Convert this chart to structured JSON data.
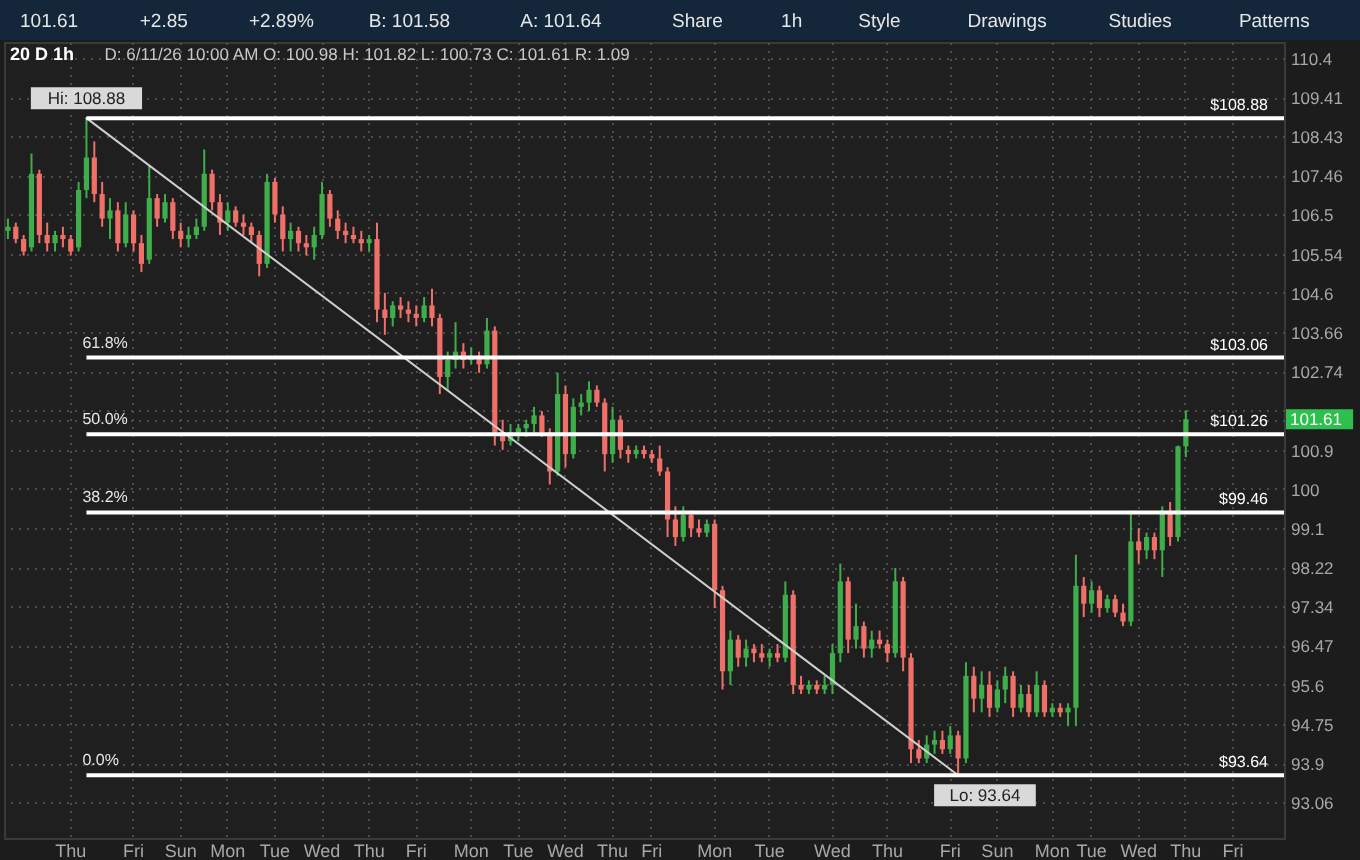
{
  "chart_data": {
    "type": "candlestick",
    "title": "20 D 1h",
    "subtitle": "D: 6/11/26 10:00 AM O: 100.98 H: 101.82 L: 100.73 C: 101.61 R: 1.09",
    "annotations": [
      "101.61",
      "+2.85",
      "+2.89%",
      "B: 101.58",
      "A: 101.64",
      "Share",
      "1h",
      "Style",
      "Drawings",
      "Studies",
      "Patterns",
      {
        "text": "61.8%",
        "y": 103.06
      },
      {
        "text": "50.0%",
        "y": 101.26
      },
      {
        "text": "38.2%",
        "y": 99.46
      },
      {
        "text": "0.0%",
        "y": 93.64
      }
    ],
    "categories": [
      null,
      null,
      null,
      null,
      null,
      null,
      null,
      null,
      "Thu",
      null,
      null,
      null,
      null,
      null,
      null,
      null,
      "Fri",
      null,
      null,
      null,
      null,
      null,
      "Sun",
      null,
      null,
      null,
      null,
      null,
      "Mon",
      null,
      null,
      null,
      null,
      null,
      "Tue",
      null,
      null,
      null,
      null,
      null,
      "Wed",
      null,
      null,
      null,
      null,
      null,
      "Thu",
      null,
      null,
      null,
      null,
      null,
      "Fri",
      null,
      null,
      null,
      null,
      null,
      null,
      "Mon",
      null,
      null,
      null,
      null,
      null,
      "Tue",
      null,
      null,
      null,
      null,
      null,
      "Wed",
      null,
      null,
      null,
      null,
      null,
      "Thu",
      null,
      null,
      null,
      null,
      "Fri",
      null,
      null,
      null,
      null,
      null,
      null,
      null,
      "Mon",
      null,
      null,
      null,
      null,
      null,
      null,
      "Tue",
      null,
      null,
      null,
      null,
      null,
      null,
      null,
      "Wed",
      null,
      null,
      null,
      null,
      null,
      null,
      "Thu",
      null,
      null,
      null,
      null,
      null,
      null,
      null,
      "Fri",
      null,
      null,
      null,
      null,
      null,
      "Sun",
      null,
      null,
      null,
      null,
      null,
      null,
      "Mon",
      null,
      null,
      null,
      null,
      "Tue",
      null,
      null,
      null,
      null,
      null,
      "Wed",
      null,
      null,
      null,
      null,
      null,
      "Thu",
      null,
      null,
      null,
      null,
      null,
      "Fri",
      null,
      null,
      null,
      null,
      null,
      null
    ],
    "ohlc": [
      [
        106.1,
        106.4,
        105.9,
        106.2
      ],
      [
        106.2,
        106.3,
        105.8,
        105.9
      ],
      [
        105.9,
        106.0,
        105.5,
        105.6
      ],
      [
        105.7,
        108.0,
        105.6,
        107.5
      ],
      [
        107.5,
        107.6,
        105.8,
        106.0
      ],
      [
        106.0,
        106.3,
        105.6,
        105.8
      ],
      [
        105.8,
        106.1,
        105.6,
        106.0
      ],
      [
        106.0,
        106.2,
        105.7,
        105.9
      ],
      [
        105.9,
        106.0,
        105.5,
        105.6
      ],
      [
        105.7,
        107.3,
        105.6,
        107.1
      ],
      [
        107.1,
        108.88,
        106.9,
        107.9
      ],
      [
        107.9,
        108.3,
        106.8,
        107.0
      ],
      [
        107.0,
        107.3,
        106.2,
        106.4
      ],
      [
        106.4,
        106.9,
        105.9,
        106.6
      ],
      [
        106.6,
        106.8,
        105.6,
        105.8
      ],
      [
        105.8,
        106.8,
        105.7,
        106.5
      ],
      [
        106.5,
        106.6,
        105.6,
        105.8
      ],
      [
        105.8,
        106.0,
        105.1,
        105.3
      ],
      [
        105.4,
        107.7,
        105.3,
        106.9
      ],
      [
        106.9,
        107.0,
        106.2,
        106.4
      ],
      [
        106.4,
        107.0,
        106.3,
        106.8
      ],
      [
        106.8,
        106.9,
        105.9,
        106.1
      ],
      [
        106.1,
        106.3,
        105.7,
        105.9
      ],
      [
        105.9,
        106.2,
        105.7,
        106.0
      ],
      [
        106.0,
        106.4,
        105.9,
        106.2
      ],
      [
        106.2,
        108.1,
        106.1,
        107.5
      ],
      [
        107.5,
        107.6,
        106.6,
        106.8
      ],
      [
        106.8,
        107.0,
        106.0,
        106.3
      ],
      [
        106.3,
        106.8,
        106.1,
        106.6
      ],
      [
        106.6,
        106.7,
        106.2,
        106.3
      ],
      [
        106.3,
        106.5,
        106.0,
        106.2
      ],
      [
        106.2,
        106.3,
        105.8,
        106.0
      ],
      [
        106.0,
        106.1,
        105.0,
        105.3
      ],
      [
        105.3,
        107.5,
        105.2,
        107.3
      ],
      [
        107.3,
        107.4,
        106.3,
        106.5
      ],
      [
        106.5,
        106.7,
        105.6,
        105.9
      ],
      [
        105.9,
        106.3,
        105.6,
        106.1
      ],
      [
        106.1,
        106.2,
        105.6,
        105.8
      ],
      [
        105.8,
        106.0,
        105.5,
        105.7
      ],
      [
        105.7,
        106.2,
        105.4,
        106.0
      ],
      [
        106.0,
        107.3,
        105.9,
        107.0
      ],
      [
        107.0,
        107.1,
        106.2,
        106.4
      ],
      [
        106.4,
        106.6,
        105.9,
        106.1
      ],
      [
        106.1,
        106.3,
        105.8,
        106.0
      ],
      [
        106.0,
        106.2,
        105.8,
        105.9
      ],
      [
        105.9,
        106.1,
        105.6,
        105.8
      ],
      [
        105.8,
        106.0,
        105.6,
        105.9
      ],
      [
        105.9,
        106.3,
        103.9,
        104.2
      ],
      [
        104.2,
        104.6,
        103.6,
        104.0
      ],
      [
        104.0,
        104.4,
        103.8,
        104.3
      ],
      [
        104.3,
        104.5,
        104.0,
        104.2
      ],
      [
        104.2,
        104.4,
        103.9,
        104.1
      ],
      [
        104.1,
        104.3,
        103.8,
        104.0
      ],
      [
        104.0,
        104.5,
        103.9,
        104.3
      ],
      [
        104.3,
        104.7,
        103.8,
        104.0
      ],
      [
        104.0,
        104.1,
        102.2,
        102.6
      ],
      [
        102.6,
        103.2,
        102.3,
        103.0
      ],
      [
        103.0,
        103.9,
        102.8,
        103.2
      ],
      [
        103.2,
        103.4,
        102.8,
        103.0
      ],
      [
        103.0,
        103.3,
        102.9,
        103.1
      ],
      [
        103.1,
        103.2,
        102.7,
        102.9
      ],
      [
        102.9,
        104.0,
        102.8,
        103.7
      ],
      [
        103.7,
        103.8,
        101.0,
        101.3
      ],
      [
        101.3,
        101.6,
        100.9,
        101.1
      ],
      [
        101.1,
        101.5,
        101.0,
        101.3
      ],
      [
        101.3,
        101.5,
        101.1,
        101.4
      ],
      [
        101.4,
        101.6,
        101.2,
        101.5
      ],
      [
        101.5,
        101.9,
        101.3,
        101.7
      ],
      [
        101.7,
        101.8,
        101.2,
        101.3
      ],
      [
        101.3,
        101.4,
        100.1,
        100.4
      ],
      [
        100.4,
        102.7,
        100.3,
        102.2
      ],
      [
        102.2,
        102.4,
        100.5,
        100.8
      ],
      [
        100.8,
        102.1,
        100.7,
        101.9
      ],
      [
        101.9,
        102.2,
        101.7,
        102.0
      ],
      [
        102.0,
        102.5,
        101.8,
        102.3
      ],
      [
        102.3,
        102.4,
        101.9,
        102.0
      ],
      [
        102.0,
        102.1,
        100.4,
        100.8
      ],
      [
        100.8,
        101.9,
        100.6,
        101.6
      ],
      [
        101.6,
        101.7,
        100.7,
        100.9
      ],
      [
        100.9,
        101.0,
        100.6,
        100.8
      ],
      [
        100.8,
        101.0,
        100.7,
        100.9
      ],
      [
        100.9,
        101.0,
        100.7,
        100.8
      ],
      [
        100.8,
        100.9,
        100.6,
        100.7
      ],
      [
        100.7,
        101.0,
        100.3,
        100.4
      ],
      [
        100.4,
        100.5,
        98.9,
        99.3
      ],
      [
        99.3,
        99.6,
        98.7,
        98.9
      ],
      [
        98.9,
        99.6,
        98.8,
        99.4
      ],
      [
        99.4,
        99.5,
        98.9,
        99.1
      ],
      [
        99.1,
        99.3,
        98.9,
        99.0
      ],
      [
        99.0,
        99.3,
        98.9,
        99.2
      ],
      [
        99.2,
        99.3,
        97.3,
        97.7
      ],
      [
        97.7,
        97.8,
        95.5,
        95.9
      ],
      [
        95.9,
        96.8,
        95.6,
        96.6
      ],
      [
        96.6,
        96.7,
        96.0,
        96.2
      ],
      [
        96.2,
        96.6,
        96.0,
        96.4
      ],
      [
        96.4,
        96.5,
        96.1,
        96.3
      ],
      [
        96.3,
        96.5,
        96.1,
        96.2
      ],
      [
        96.2,
        96.4,
        96.0,
        96.3
      ],
      [
        96.3,
        96.5,
        96.1,
        96.2
      ],
      [
        96.2,
        97.9,
        96.1,
        97.6
      ],
      [
        97.6,
        97.7,
        95.4,
        95.6
      ],
      [
        95.6,
        95.8,
        95.4,
        95.5
      ],
      [
        95.5,
        95.7,
        95.4,
        95.6
      ],
      [
        95.6,
        95.7,
        95.4,
        95.5
      ],
      [
        95.5,
        95.8,
        95.4,
        95.6
      ],
      [
        95.6,
        96.5,
        95.4,
        96.3
      ],
      [
        96.3,
        98.3,
        96.1,
        97.9
      ],
      [
        97.9,
        98.0,
        96.3,
        96.6
      ],
      [
        96.6,
        97.4,
        96.4,
        96.9
      ],
      [
        96.9,
        97.0,
        96.2,
        96.4
      ],
      [
        96.4,
        96.8,
        96.2,
        96.6
      ],
      [
        96.6,
        96.8,
        96.4,
        96.5
      ],
      [
        96.5,
        96.6,
        96.1,
        96.3
      ],
      [
        96.3,
        98.2,
        96.2,
        97.9
      ],
      [
        97.9,
        98.0,
        95.9,
        96.2
      ],
      [
        96.2,
        96.3,
        93.9,
        94.2
      ],
      [
        94.2,
        94.4,
        93.9,
        94.0
      ],
      [
        94.0,
        94.5,
        93.9,
        94.3
      ],
      [
        94.3,
        94.6,
        94.1,
        94.4
      ],
      [
        94.4,
        94.6,
        94.1,
        94.2
      ],
      [
        94.2,
        94.7,
        94.1,
        94.5
      ],
      [
        94.5,
        94.6,
        93.64,
        94.0
      ],
      [
        94.0,
        96.1,
        93.9,
        95.8
      ],
      [
        95.8,
        96.0,
        95.0,
        95.3
      ],
      [
        95.3,
        95.9,
        95.0,
        95.6
      ],
      [
        95.6,
        95.9,
        94.9,
        95.1
      ],
      [
        95.1,
        95.7,
        95.0,
        95.5
      ],
      [
        95.5,
        96.0,
        95.2,
        95.8
      ],
      [
        95.8,
        95.9,
        94.9,
        95.1
      ],
      [
        95.1,
        95.6,
        95.0,
        95.4
      ],
      [
        95.4,
        95.6,
        94.9,
        95.0
      ],
      [
        95.0,
        95.9,
        94.9,
        95.6
      ],
      [
        95.6,
        95.7,
        94.9,
        95.0
      ],
      [
        95.0,
        95.2,
        94.9,
        95.1
      ],
      [
        95.1,
        95.2,
        94.9,
        95.0
      ],
      [
        95.0,
        95.2,
        94.7,
        95.1
      ],
      [
        95.1,
        98.5,
        94.7,
        97.8
      ],
      [
        97.8,
        98.0,
        97.1,
        97.4
      ],
      [
        97.4,
        97.9,
        97.2,
        97.7
      ],
      [
        97.7,
        97.8,
        97.1,
        97.3
      ],
      [
        97.3,
        97.6,
        97.2,
        97.5
      ],
      [
        97.5,
        97.6,
        97.1,
        97.2
      ],
      [
        97.2,
        97.4,
        96.9,
        97.0
      ],
      [
        97.0,
        99.5,
        96.9,
        98.8
      ],
      [
        98.8,
        99.1,
        98.3,
        98.6
      ],
      [
        98.6,
        99.0,
        98.4,
        98.9
      ],
      [
        98.9,
        99.0,
        98.4,
        98.6
      ],
      [
        98.6,
        99.6,
        98.0,
        99.5
      ],
      [
        99.5,
        99.7,
        98.7,
        98.9
      ],
      [
        98.9,
        101.0,
        98.8,
        100.98
      ],
      [
        100.98,
        101.82,
        100.73,
        101.61
      ],
      null,
      null,
      null,
      null,
      null,
      null,
      null,
      null,
      null,
      null,
      null,
      null
    ],
    "colors": [
      "#3fae4a",
      "#ef7068",
      "#ef7068",
      "#3fae4a",
      "#ef7068",
      "#ef7068",
      "#3fae4a",
      "#ef7068",
      "#ef7068",
      "#3fae4a",
      "#3fae4a",
      "#ef7068",
      "#ef7068",
      "#3fae4a",
      "#ef7068",
      "#3fae4a",
      "#ef7068",
      "#ef7068",
      "#3fae4a",
      "#ef7068",
      "#3fae4a",
      "#ef7068",
      "#ef7068",
      "#3fae4a",
      "#3fae4a",
      "#3fae4a",
      "#ef7068",
      "#ef7068",
      "#3fae4a",
      "#ef7068",
      "#ef7068",
      "#ef7068",
      "#ef7068",
      "#3fae4a",
      "#ef7068",
      "#ef7068",
      "#3fae4a",
      "#ef7068",
      "#ef7068",
      "#3fae4a",
      "#3fae4a",
      "#ef7068",
      "#ef7068",
      "#ef7068",
      "#ef7068",
      "#ef7068",
      "#3fae4a",
      "#ef7068",
      "#ef7068",
      "#3fae4a",
      "#ef7068",
      "#ef7068",
      "#ef7068",
      "#3fae4a",
      "#ef7068",
      "#ef7068",
      "#3fae4a",
      "#3fae4a",
      "#ef7068",
      "#3fae4a",
      "#ef7068",
      "#3fae4a",
      "#ef7068",
      "#ef7068",
      "#3fae4a",
      "#3fae4a",
      "#3fae4a",
      "#3fae4a",
      "#ef7068",
      "#ef7068",
      "#3fae4a",
      "#ef7068",
      "#3fae4a",
      "#3fae4a",
      "#3fae4a",
      "#ef7068",
      "#ef7068",
      "#3fae4a",
      "#ef7068",
      "#ef7068",
      "#3fae4a",
      "#ef7068",
      "#ef7068",
      "#ef7068",
      "#ef7068",
      "#ef7068",
      "#3fae4a",
      "#ef7068",
      "#ef7068",
      "#3fae4a",
      "#ef7068",
      "#ef7068",
      "#3fae4a",
      "#ef7068",
      "#3fae4a",
      "#ef7068",
      "#ef7068",
      "#3fae4a",
      "#ef7068",
      "#3fae4a",
      "#ef7068",
      "#ef7068",
      "#3fae4a",
      "#ef7068",
      "#3fae4a",
      "#3fae4a",
      "#3fae4a",
      "#ef7068",
      "#3fae4a",
      "#ef7068",
      "#3fae4a",
      "#ef7068",
      "#ef7068",
      "#3fae4a",
      "#ef7068",
      "#ef7068",
      "#ef7068",
      "#3fae4a",
      "#3fae4a",
      "#ef7068",
      "#3fae4a",
      "#ef7068",
      "#3fae4a",
      "#ef7068",
      "#3fae4a",
      "#ef7068",
      "#3fae4a",
      "#3fae4a",
      "#ef7068",
      "#3fae4a",
      "#ef7068",
      "#3fae4a",
      "#ef7068",
      "#3fae4a",
      "#ef7068",
      "#3fae4a",
      "#3fae4a",
      "#ef7068",
      "#3fae4a",
      "#ef7068",
      "#3fae4a",
      "#ef7068",
      "#ef7068",
      "#3fae4a",
      "#ef7068",
      "#3fae4a",
      "#ef7068",
      "#3fae4a",
      "#ef7068",
      "#3fae4a",
      "#3fae4a",
      null,
      null,
      null,
      null,
      null,
      null,
      null,
      null,
      null,
      null,
      null,
      null
    ],
    "series": [
      {
        "type": "line",
        "color": "#cfcfcf",
        "values": [
          null,
          null,
          null,
          null,
          null,
          null,
          null,
          null,
          null,
          null,
          108.88,
          null,
          null,
          null,
          null,
          null,
          null,
          null,
          null,
          null,
          null,
          null,
          null,
          null,
          null,
          null,
          null,
          null,
          null,
          null,
          null,
          null,
          null,
          null,
          null,
          null,
          null,
          null,
          null,
          null,
          null,
          null,
          null,
          null,
          null,
          null,
          null,
          null,
          null,
          null,
          null,
          null,
          null,
          null,
          null,
          null,
          null,
          null,
          null,
          null,
          null,
          null,
          null,
          null,
          null,
          null,
          null,
          null,
          null,
          null,
          null,
          null,
          null,
          null,
          null,
          null,
          null,
          null,
          null,
          null,
          null,
          null,
          null,
          null,
          null,
          null,
          null,
          null,
          null,
          null,
          null,
          null,
          null,
          null,
          null,
          null,
          null,
          null,
          null,
          null,
          null,
          null,
          null,
          null,
          null,
          null,
          null,
          null,
          null,
          null,
          null,
          null,
          null,
          null,
          null,
          null,
          null,
          null,
          null,
          null,
          null,
          93.64,
          null,
          null,
          null,
          null,
          null,
          null,
          null,
          null,
          null,
          null,
          null,
          null,
          null,
          null,
          null,
          null,
          null,
          null,
          null,
          null,
          null,
          null,
          null,
          null,
          null,
          null,
          null,
          null,
          null,
          null,
          null,
          null,
          null,
          null,
          null,
          null,
          null,
          null,
          null,
          null,
          null
        ],
        "value_labels": [
          null,
          null,
          null,
          null,
          null,
          null,
          null,
          null,
          null,
          null,
          "Hi: 108.88",
          null,
          null,
          null,
          null,
          null,
          null,
          null,
          null,
          null,
          null,
          null,
          null,
          null,
          null,
          null,
          null,
          null,
          null,
          null,
          null,
          null,
          null,
          null,
          null,
          null,
          null,
          null,
          null,
          null,
          null,
          null,
          null,
          null,
          null,
          null,
          null,
          null,
          null,
          null,
          null,
          null,
          null,
          null,
          null,
          null,
          null,
          null,
          null,
          null,
          null,
          null,
          null,
          null,
          null,
          null,
          null,
          null,
          null,
          null,
          null,
          null,
          null,
          null,
          null,
          null,
          null,
          null,
          null,
          null,
          null,
          null,
          null,
          null,
          null,
          null,
          null,
          null,
          null,
          null,
          null,
          null,
          null,
          null,
          null,
          null,
          null,
          null,
          null,
          null,
          null,
          null,
          null,
          null,
          null,
          null,
          null,
          null,
          null,
          null,
          null,
          null,
          null,
          null,
          null,
          null,
          null,
          null,
          null,
          null,
          null,
          "Lo: 93.64",
          null,
          null,
          null,
          null,
          null,
          null,
          null,
          null,
          null,
          null,
          null,
          null,
          null,
          null,
          null,
          null,
          null,
          null,
          null,
          null,
          null,
          null,
          null,
          null,
          null,
          null,
          null,
          null,
          null,
          null,
          null,
          null,
          null,
          null,
          null,
          null,
          null,
          null,
          null,
          null,
          null
        ]
      }
    ],
    "ref_lines": [
      {
        "axis": "y",
        "value": 108.88,
        "label": "$108.88",
        "color": "#ffffff"
      },
      {
        "axis": "y",
        "value": 103.06,
        "label": "$103.06",
        "color": "#ffffff"
      },
      {
        "axis": "y",
        "value": 101.26,
        "label": "$101.26",
        "color": "#ffffff"
      },
      {
        "axis": "y",
        "value": 99.46,
        "label": "$99.46",
        "color": "#ffffff"
      },
      {
        "axis": "y",
        "value": 93.64,
        "label": "$93.64",
        "color": "#ffffff"
      }
    ],
    "ylim": [
      92.3,
      110.8
    ],
    "yticks": [
      110.4,
      109.41,
      108.43,
      107.46,
      106.5,
      105.54,
      104.6,
      103.66,
      102.74,
      {
        "value": 101.82,
        "label": null
      },
      101.61,
      100.9,
      100,
      99.1,
      98.22,
      97.34,
      96.47,
      95.6,
      94.75,
      93.9,
      93.06
    ],
    "log": true,
    "grid": true
  }
}
